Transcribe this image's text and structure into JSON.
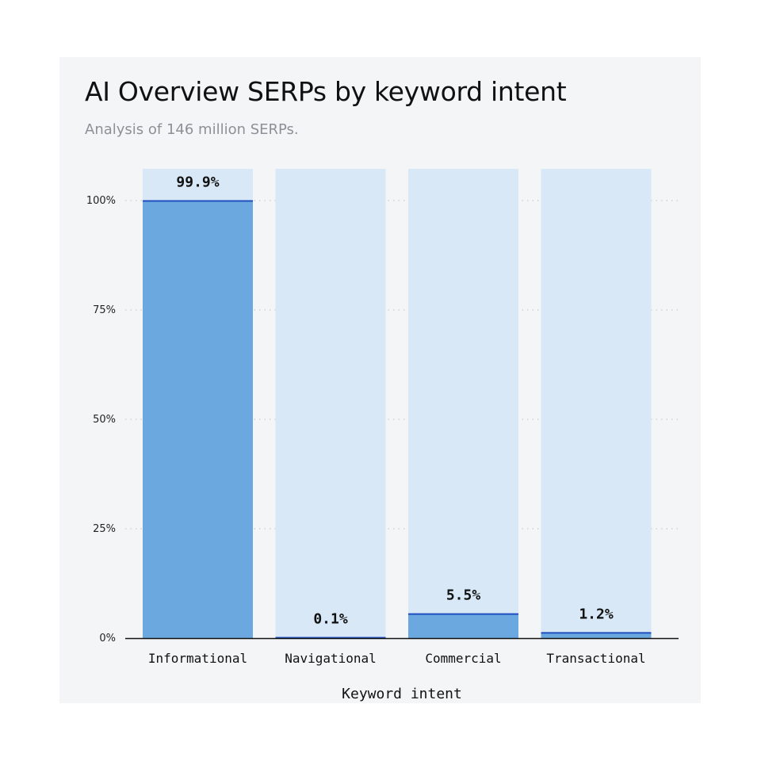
{
  "chart_data": {
    "type": "bar",
    "title": "AI Overview SERPs by keyword intent",
    "subtitle": "Analysis of 146 million SERPs.",
    "xlabel": "Keyword intent",
    "ylabel": "",
    "categories": [
      "Informational",
      "Navigational",
      "Commercial",
      "Transactional"
    ],
    "values": [
      99.9,
      0.1,
      5.5,
      1.2
    ],
    "value_labels": [
      "99.9%",
      "0.1%",
      "5.5%",
      "1.2%"
    ],
    "yticks": [
      0,
      25,
      50,
      75,
      100
    ],
    "ytick_labels": [
      "0%",
      "25%",
      "50%",
      "75%",
      "100%"
    ],
    "ylim": [
      0,
      100
    ],
    "grid": true,
    "legend": "none",
    "colors": {
      "bar": "#6aa8df",
      "bar_background": "#d8e8f7",
      "bar_top_line": "#1f4fbf",
      "grid": "#c8cacc",
      "axis": "#111111"
    }
  }
}
